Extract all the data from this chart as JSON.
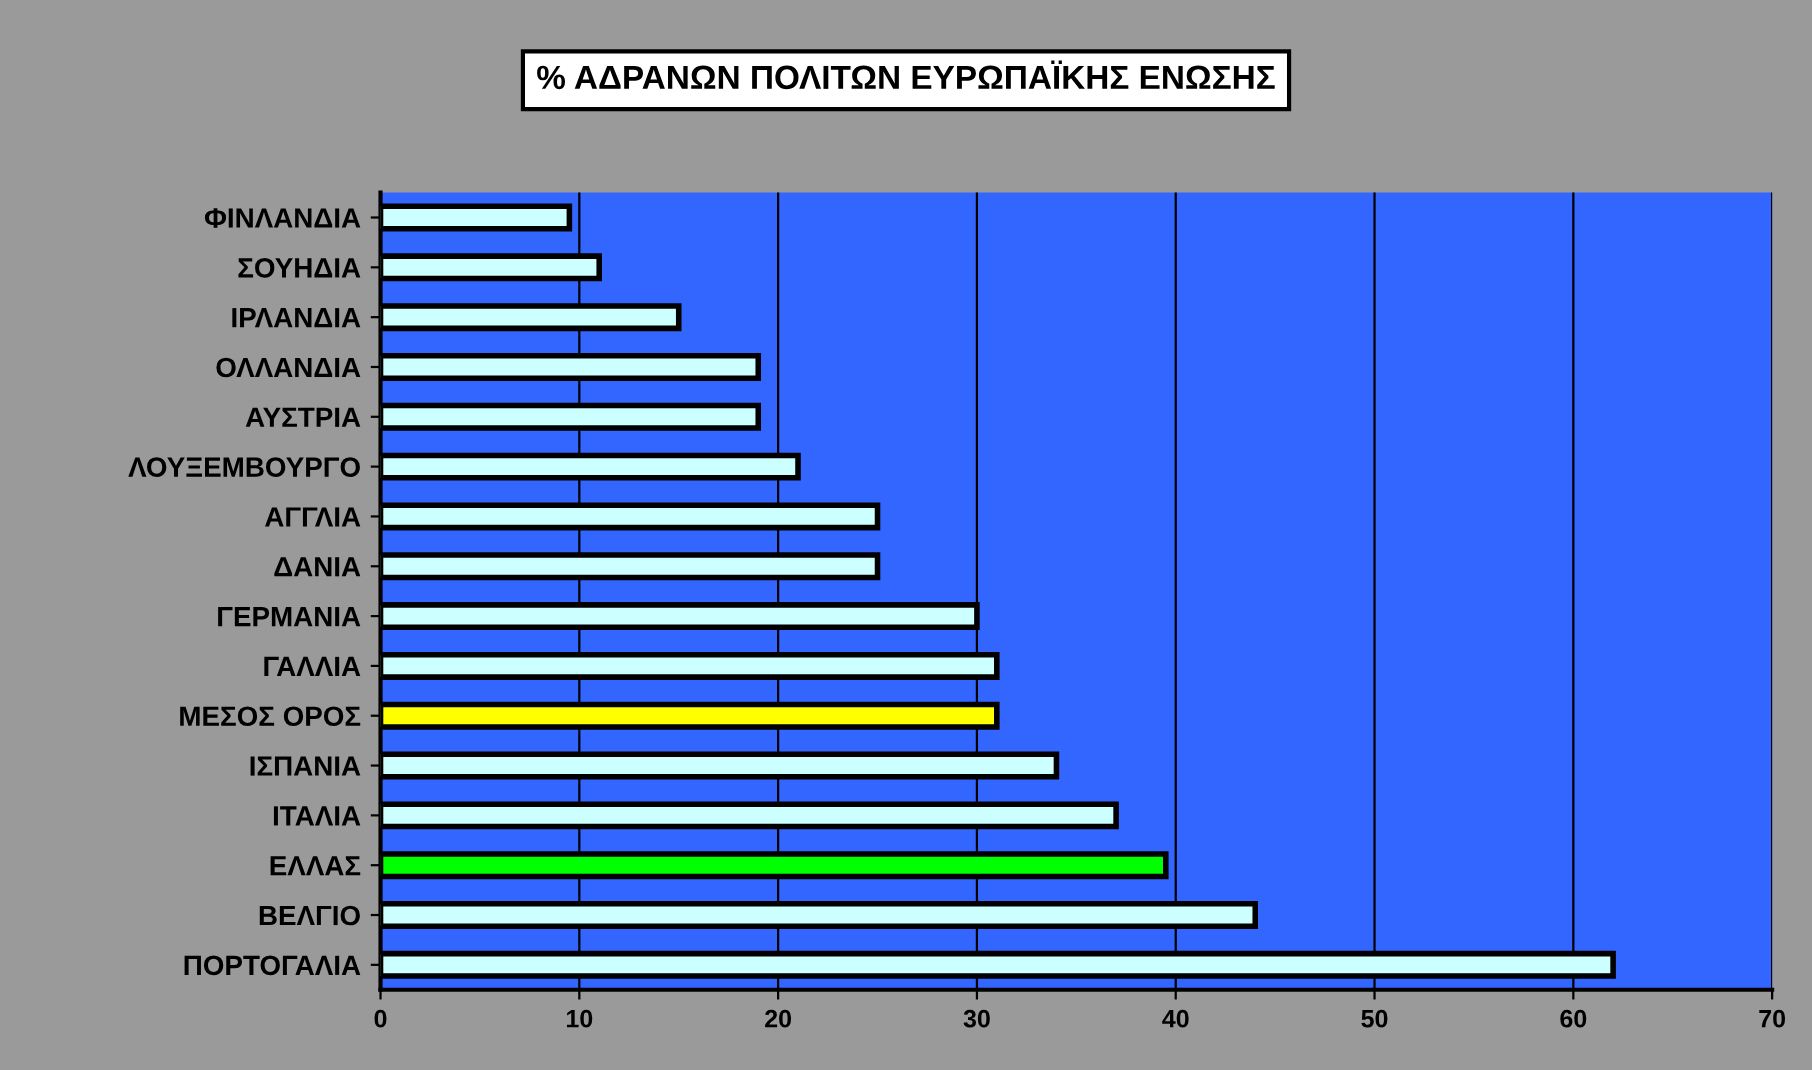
{
  "chart_data": {
    "type": "bar",
    "orientation": "horizontal",
    "title": "% ΑΔΡΑΝΩΝ ΠΟΛΙΤΩΝ ΕΥΡΩΠΑΪΚΗΣ ΕΝΩΣΗΣ",
    "categories": [
      "ΦΙΝΛΑΝΔΙΑ",
      "ΣΟΥΗΔΙΑ",
      "ΙΡΛΑΝΔΙΑ",
      "ΟΛΛΑΝΔΙΑ",
      "ΑΥΣΤΡΙΑ",
      "ΛΟΥΞΕΜΒΟΥΡΓΟ",
      "ΑΓΓΛΙΑ",
      "ΔΑΝΙΑ",
      "ΓΕΡΜΑΝΙΑ",
      "ΓΑΛΛΙΑ",
      "ΜΕΣΟΣ ΟΡΟΣ",
      "ΙΣΠΑΝΙΑ",
      "ΙΤΑΛΙΑ",
      "ΕΛΛΑΣ",
      "ΒΕΛΓΙΟ",
      "ΠΟΡΤΟΓΑΛΙΑ"
    ],
    "values": [
      9.5,
      11,
      15,
      19,
      19,
      21,
      25,
      25,
      30,
      31,
      31,
      34,
      37,
      39.5,
      44,
      62
    ],
    "colors": [
      "#ccffff",
      "#ccffff",
      "#ccffff",
      "#ccffff",
      "#ccffff",
      "#ccffff",
      "#ccffff",
      "#ccffff",
      "#ccffff",
      "#ccffff",
      "#ffff00",
      "#ccffff",
      "#ccffff",
      "#00ff00",
      "#ccffff",
      "#ccffff"
    ],
    "xlim": [
      0,
      70
    ],
    "xticks": [
      0,
      10,
      20,
      30,
      40,
      50,
      60,
      70
    ],
    "grid": "x",
    "legend": false
  }
}
